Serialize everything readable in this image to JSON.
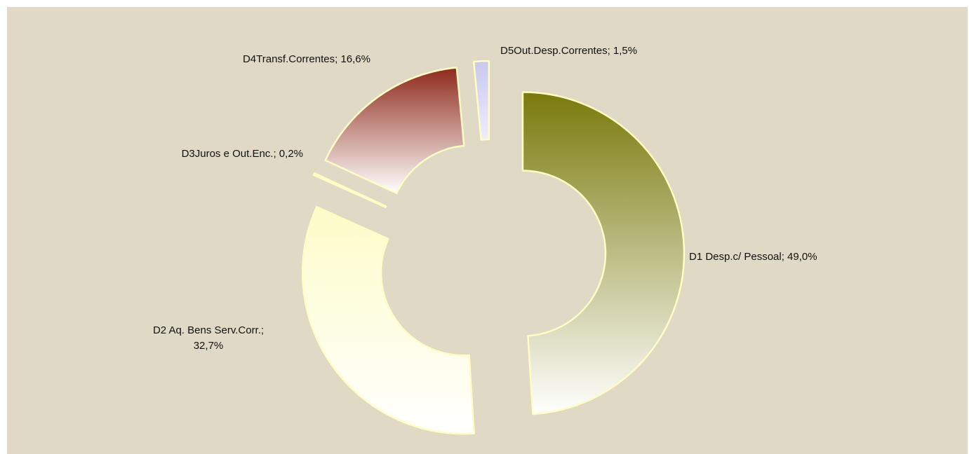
{
  "chart_data": {
    "type": "pie",
    "variant": "donut-exploded",
    "slices": [
      {
        "label": "D1 Desp.c/ Pessoal; 49,0%",
        "value": 49.0,
        "color_top": "#7a7a0c",
        "color_bottom": "#ffffff"
      },
      {
        "label": "D2 Aq. Bens Serv.Corr.;",
        "label2": "32,7%",
        "value": 32.7,
        "color_top": "#fefcc8",
        "color_bottom": "#ffffff"
      },
      {
        "label": "D3Juros e Out.Enc.; 0,2%",
        "value": 0.2,
        "color_top": "#fdf8c0",
        "color_bottom": "#fffce0"
      },
      {
        "label": "D4Transf.Correntes; 16,6%",
        "value": 16.6,
        "color_top": "#8e2a1b",
        "color_bottom": "#ffffff"
      },
      {
        "label": "D5Out.Desp.Correntes; 1,5%",
        "value": 1.5,
        "color_top": "#c8c8ee",
        "color_bottom": "#eeeeff"
      }
    ],
    "background": "#dfd9c5",
    "slice_border": "#fffcc4"
  }
}
